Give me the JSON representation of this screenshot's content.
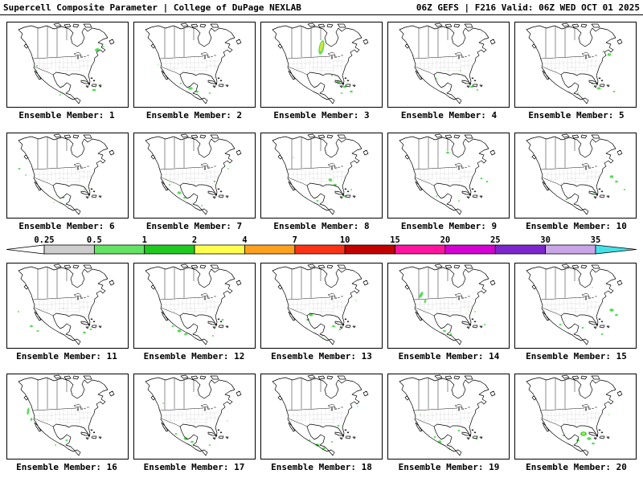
{
  "header": {
    "left": "Supercell Composite Parameter | College of DuPage NEXLAB",
    "right": "06Z GEFS | F216 Valid: 06Z WED OCT 01 2025"
  },
  "member_label_prefix": "Ensemble Member:",
  "colorbar": {
    "ticks": [
      "0.25",
      "0.5",
      "1",
      "2",
      "4",
      "7",
      "10",
      "15",
      "20",
      "25",
      "30",
      "35"
    ],
    "left_arrow_color": "#ffffff",
    "right_arrow_color": "#45e0e8",
    "segment_colors": [
      "#cdcdcd",
      "#63e363",
      "#1fc91f",
      "#ffff4d",
      "#ffa01e",
      "#fb3316",
      "#c20000",
      "#ff14a0",
      "#d400d4",
      "#7d26cd",
      "#c9a6e8"
    ]
  },
  "members": [
    {
      "number": 1,
      "blobs": [
        [
          112,
          34,
          3,
          2,
          -15,
          "#55dd55"
        ],
        [
          119,
          30,
          2,
          1.3,
          0,
          "#a0eea0"
        ],
        [
          37,
          54,
          1.3,
          0.9,
          0,
          "#55dd55"
        ],
        [
          108,
          84,
          2.3,
          1.4,
          0,
          "#55dd55"
        ],
        [
          116,
          80,
          1.4,
          0.9,
          0,
          "#55dd55"
        ],
        [
          66,
          90,
          1.2,
          0.8,
          0,
          "#55dd55"
        ]
      ]
    },
    {
      "number": 2,
      "blobs": [
        [
          70,
          82,
          2.8,
          1.8,
          0,
          "#55dd55"
        ],
        [
          78,
          86,
          2,
          1.3,
          0,
          "#55dd55"
        ],
        [
          58,
          76,
          1.4,
          0.9,
          0,
          "#55dd55"
        ],
        [
          94,
          88,
          1.4,
          0.9,
          0,
          "#55dd55"
        ],
        [
          30,
          52,
          1,
          0.7,
          0,
          "#a0eea0"
        ]
      ]
    },
    {
      "number": 3,
      "blobs": [
        [
          75,
          31,
          3.2,
          9,
          12,
          "#55dd55"
        ],
        [
          75,
          30,
          1.8,
          6.5,
          12,
          "#d8e23c"
        ],
        [
          96,
          74,
          2.6,
          1.7,
          0,
          "#55dd55"
        ],
        [
          104,
          80,
          2.3,
          1.5,
          0,
          "#55dd55"
        ],
        [
          88,
          66,
          1.3,
          0.9,
          0,
          "#55dd55"
        ],
        [
          112,
          86,
          1.8,
          1.2,
          0,
          "#55dd55"
        ],
        [
          100,
          88,
          1.4,
          0.9,
          0,
          "#55dd55"
        ]
      ]
    },
    {
      "number": 4,
      "blobs": [
        [
          104,
          80,
          1.9,
          1.3,
          0,
          "#55dd55"
        ],
        [
          111,
          84,
          1.3,
          0.9,
          0,
          "#55dd55"
        ],
        [
          60,
          70,
          1,
          0.7,
          0,
          "#55dd55"
        ],
        [
          31,
          41,
          1,
          0.7,
          0,
          "#a0eea0"
        ],
        [
          90,
          60,
          0.9,
          0.6,
          0,
          "#55dd55"
        ]
      ]
    },
    {
      "number": 5,
      "blobs": [
        [
          117,
          40,
          2.3,
          1.7,
          0,
          "#55dd55"
        ],
        [
          110,
          36,
          1.4,
          1,
          0,
          "#55dd55"
        ],
        [
          104,
          82,
          2.4,
          1.5,
          0,
          "#55dd55"
        ],
        [
          96,
          76,
          1.4,
          1,
          0,
          "#55dd55"
        ],
        [
          123,
          86,
          1.4,
          1,
          0,
          "#55dd55"
        ],
        [
          78,
          88,
          1.2,
          0.8,
          0,
          "#55dd55"
        ]
      ]
    },
    {
      "number": 6,
      "blobs": [
        [
          15,
          44,
          1.4,
          1,
          0,
          "#55dd55"
        ],
        [
          23,
          52,
          1,
          0.7,
          0,
          "#55dd55"
        ],
        [
          70,
          80,
          1.4,
          1,
          0,
          "#55dd55"
        ],
        [
          96,
          70,
          1,
          0.7,
          0,
          "#55dd55"
        ],
        [
          58,
          86,
          1,
          0.7,
          0,
          "#a0eea0"
        ]
      ]
    },
    {
      "number": 7,
      "blobs": [
        [
          56,
          74,
          2.3,
          1.7,
          0,
          "#55dd55"
        ],
        [
          63,
          80,
          1.9,
          1.3,
          0,
          "#55dd55"
        ],
        [
          44,
          64,
          1.3,
          0.9,
          0,
          "#55dd55"
        ],
        [
          100,
          60,
          1.4,
          1,
          0,
          "#55dd55"
        ],
        [
          117,
          44,
          1,
          0.7,
          0,
          "#55dd55"
        ],
        [
          84,
          90,
          1.2,
          0.8,
          0,
          "#55dd55"
        ]
      ]
    },
    {
      "number": 8,
      "blobs": [
        [
          86,
          58,
          2.3,
          1.7,
          20,
          "#55dd55"
        ],
        [
          92,
          64,
          1.9,
          1.3,
          0,
          "#55dd55"
        ],
        [
          104,
          78,
          1.9,
          1.3,
          0,
          "#55dd55"
        ],
        [
          70,
          84,
          1.4,
          1,
          0,
          "#55dd55"
        ],
        [
          40,
          30,
          1,
          0.7,
          0,
          "#a0eea0"
        ],
        [
          112,
          70,
          1.2,
          0.8,
          0,
          "#55dd55"
        ]
      ]
    },
    {
      "number": 9,
      "blobs": [
        [
          74,
          24,
          1.9,
          1.3,
          0,
          "#55dd55"
        ],
        [
          116,
          56,
          1.4,
          1,
          0,
          "#55dd55"
        ],
        [
          123,
          60,
          1.4,
          1,
          0,
          "#55dd55"
        ],
        [
          60,
          78,
          1,
          0.7,
          0,
          "#55dd55"
        ],
        [
          88,
          84,
          1.2,
          0.8,
          0,
          "#55dd55"
        ]
      ]
    },
    {
      "number": 10,
      "blobs": [
        [
          120,
          54,
          2.3,
          1.7,
          0,
          "#55dd55"
        ],
        [
          126,
          60,
          1.9,
          1.3,
          0,
          "#55dd55"
        ],
        [
          98,
          74,
          1.4,
          1,
          0,
          "#55dd55"
        ],
        [
          64,
          82,
          1.4,
          1,
          0,
          "#55dd55"
        ],
        [
          20,
          30,
          1,
          0.7,
          0,
          "#a0eea0"
        ],
        [
          136,
          70,
          1.3,
          0.9,
          0,
          "#55dd55"
        ]
      ]
    },
    {
      "number": 11,
      "blobs": [
        [
          30,
          78,
          1.9,
          1.4,
          0,
          "#55dd55"
        ],
        [
          38,
          84,
          1.4,
          1,
          0,
          "#55dd55"
        ],
        [
          96,
          86,
          1.9,
          1.3,
          0,
          "#55dd55"
        ],
        [
          104,
          82,
          1.4,
          1,
          0,
          "#55dd55"
        ],
        [
          70,
          56,
          1,
          0.7,
          0,
          "#a0eea0"
        ],
        [
          14,
          60,
          1.2,
          0.8,
          0,
          "#55dd55"
        ]
      ]
    },
    {
      "number": 12,
      "blobs": [
        [
          56,
          84,
          2.3,
          1.7,
          0,
          "#55dd55"
        ],
        [
          64,
          88,
          1.9,
          1.3,
          0,
          "#55dd55"
        ],
        [
          48,
          78,
          1.4,
          1,
          0,
          "#55dd55"
        ],
        [
          90,
          40,
          1,
          0.7,
          0,
          "#a0eea0"
        ],
        [
          110,
          70,
          1.4,
          1,
          0,
          "#55dd55"
        ],
        [
          98,
          90,
          1.3,
          0.9,
          0,
          "#55dd55"
        ]
      ]
    },
    {
      "number": 13,
      "blobs": [
        [
          62,
          64,
          2.3,
          1.7,
          0,
          "#55dd55"
        ],
        [
          58,
          70,
          1.9,
          1.4,
          0,
          "#55dd55"
        ],
        [
          90,
          78,
          1.9,
          1.3,
          0,
          "#55dd55"
        ],
        [
          98,
          82,
          1.4,
          1,
          0,
          "#55dd55"
        ],
        [
          118,
          46,
          1,
          0.7,
          0,
          "#a0eea0"
        ],
        [
          76,
          90,
          1.2,
          0.8,
          0,
          "#55dd55"
        ]
      ]
    },
    {
      "number": 14,
      "blobs": [
        [
          41,
          39,
          1.8,
          4.2,
          28,
          "#55dd55"
        ],
        [
          46,
          47,
          1.3,
          2.2,
          20,
          "#55dd55"
        ],
        [
          70,
          84,
          1.9,
          1.3,
          0,
          "#55dd55"
        ],
        [
          78,
          88,
          1.4,
          1,
          0,
          "#55dd55"
        ],
        [
          108,
          60,
          1,
          0.7,
          0,
          "#55dd55"
        ],
        [
          120,
          76,
          1.3,
          0.9,
          0,
          "#55dd55"
        ]
      ]
    },
    {
      "number": 15,
      "blobs": [
        [
          120,
          58,
          2.7,
          1.9,
          0,
          "#55dd55"
        ],
        [
          126,
          64,
          1.9,
          1.3,
          0,
          "#55dd55"
        ],
        [
          84,
          80,
          1.4,
          1,
          0,
          "#55dd55"
        ],
        [
          56,
          76,
          1.4,
          1,
          0,
          "#55dd55"
        ],
        [
          96,
          30,
          1,
          0.7,
          0,
          "#a0eea0"
        ],
        [
          108,
          88,
          1.4,
          1,
          0,
          "#55dd55"
        ]
      ]
    },
    {
      "number": 16,
      "blobs": [
        [
          26,
          46,
          1.4,
          4.6,
          8,
          "#55dd55"
        ],
        [
          30,
          56,
          1.4,
          1.9,
          0,
          "#55dd55"
        ],
        [
          74,
          82,
          1.4,
          1,
          0,
          "#55dd55"
        ],
        [
          100,
          74,
          1,
          0.7,
          0,
          "#55dd55"
        ],
        [
          60,
          88,
          1.2,
          0.8,
          0,
          "#55dd55"
        ]
      ]
    },
    {
      "number": 17,
      "blobs": [
        [
          64,
          80,
          2.3,
          1.7,
          0,
          "#55dd55"
        ],
        [
          72,
          84,
          1.9,
          1.3,
          0,
          "#55dd55"
        ],
        [
          52,
          74,
          1.4,
          1,
          0,
          "#55dd55"
        ],
        [
          116,
          58,
          1,
          0.7,
          0,
          "#a0eea0"
        ],
        [
          36,
          36,
          1,
          0.7,
          0,
          "#55dd55"
        ],
        [
          94,
          88,
          1.3,
          0.9,
          0,
          "#55dd55"
        ]
      ]
    },
    {
      "number": 18,
      "blobs": [
        [
          70,
          88,
          2.3,
          1.7,
          0,
          "#55dd55"
        ],
        [
          78,
          92,
          1.9,
          1.3,
          0,
          "#55dd55"
        ],
        [
          60,
          82,
          1.4,
          1,
          0,
          "#55dd55"
        ],
        [
          96,
          64,
          1.4,
          1,
          0,
          "#55dd55"
        ],
        [
          120,
          40,
          1,
          0.7,
          0,
          "#a0eea0"
        ],
        [
          88,
          84,
          1.3,
          0.9,
          0,
          "#55dd55"
        ]
      ]
    },
    {
      "number": 19,
      "blobs": [
        [
          64,
          84,
          2.3,
          1.7,
          0,
          "#55dd55"
        ],
        [
          58,
          78,
          1.4,
          1,
          0,
          "#55dd55"
        ],
        [
          88,
          70,
          1.4,
          1,
          0,
          "#55dd55"
        ],
        [
          110,
          80,
          1.4,
          1,
          0,
          "#55dd55"
        ],
        [
          40,
          50,
          1,
          0.7,
          0,
          "#a0eea0"
        ],
        [
          76,
          92,
          1.3,
          0.9,
          0,
          "#55dd55"
        ]
      ]
    },
    {
      "number": 20,
      "blobs": [
        [
          85,
          74,
          3.8,
          2.8,
          0,
          "#2ecc2e"
        ],
        [
          85,
          74,
          2.3,
          1.7,
          0,
          "#97ee4f"
        ],
        [
          92,
          80,
          2.7,
          1.9,
          0,
          "#55dd55"
        ],
        [
          78,
          82,
          1.9,
          1.4,
          0,
          "#55dd55"
        ],
        [
          97,
          86,
          1.9,
          1.3,
          0,
          "#55dd55"
        ],
        [
          60,
          76,
          1.4,
          1,
          0,
          "#55dd55"
        ],
        [
          116,
          50,
          1,
          0.7,
          0,
          "#a0eea0"
        ]
      ]
    }
  ]
}
